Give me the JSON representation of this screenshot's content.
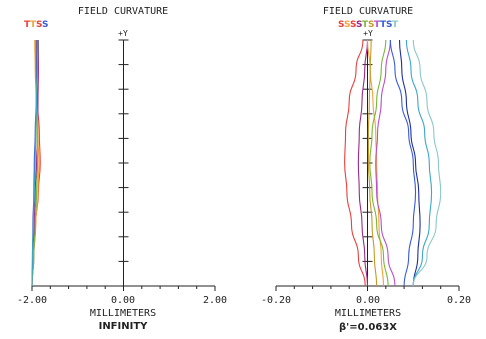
{
  "chart_data": [
    {
      "type": "line",
      "title": "FIELD CURVATURE",
      "xlabel": "MILLIMETERS",
      "sublabel": "INFINITY",
      "axis_marker": "+Y",
      "xlim": [
        -2.0,
        2.0
      ],
      "xticks": [
        "-2.00",
        "0.00",
        "2.00"
      ],
      "ylim": [
        0,
        1
      ],
      "grid": false,
      "legend": {
        "position": "top-left",
        "labels": [
          "T",
          "T",
          "S",
          "S"
        ]
      },
      "series": [
        {
          "color": "#e8413c",
          "x": [
            -2.0,
            -1.96,
            -1.92,
            -1.86,
            -1.82,
            -1.84,
            -1.88,
            -1.9,
            -1.91
          ],
          "y": [
            0,
            0.12,
            0.25,
            0.38,
            0.5,
            0.62,
            0.75,
            0.88,
            1.0
          ]
        },
        {
          "color": "#9a2a8a",
          "x": [
            -2.0,
            -1.98,
            -1.95,
            -1.93,
            -1.9,
            -1.88,
            -1.87,
            -1.86,
            -1.86
          ],
          "y": [
            0,
            0.12,
            0.25,
            0.38,
            0.5,
            0.62,
            0.75,
            0.88,
            1.0
          ]
        },
        {
          "color": "#f2a33a",
          "x": [
            -2.0,
            -1.97,
            -1.92,
            -1.87,
            -1.85,
            -1.87,
            -1.9,
            -1.93,
            -1.94
          ],
          "y": [
            0,
            0.12,
            0.25,
            0.38,
            0.5,
            0.62,
            0.75,
            0.88,
            1.0
          ]
        },
        {
          "color": "#3a5bd9",
          "x": [
            -2.0,
            -1.99,
            -1.98,
            -1.96,
            -1.95,
            -1.93,
            -1.91,
            -1.9,
            -1.89
          ],
          "y": [
            0,
            0.12,
            0.25,
            0.38,
            0.5,
            0.62,
            0.75,
            0.88,
            1.0
          ]
        },
        {
          "color": "#7ab63a",
          "x": [
            -2.0,
            -1.96,
            -1.93,
            -1.9,
            -1.88,
            -1.89,
            -1.91,
            -1.92,
            -1.92
          ],
          "y": [
            0,
            0.12,
            0.25,
            0.38,
            0.5,
            0.62,
            0.75,
            0.88,
            1.0
          ]
        },
        {
          "color": "#3aa7c9",
          "x": [
            -2.0,
            -1.99,
            -1.97,
            -1.95,
            -1.93,
            -1.92,
            -1.9,
            -1.88,
            -1.87
          ],
          "y": [
            0,
            0.12,
            0.25,
            0.38,
            0.5,
            0.62,
            0.75,
            0.88,
            1.0
          ]
        }
      ]
    },
    {
      "type": "line",
      "title": "FIELD CURVATURE",
      "xlabel": "MILLIMETERS",
      "sublabel": "β'=0.063X",
      "axis_marker": "+Y",
      "xlim": [
        -0.2,
        0.2
      ],
      "xticks": [
        "-0.20",
        "0.00",
        "0.20"
      ],
      "ylim": [
        0,
        1
      ],
      "grid": false,
      "legend": {
        "position": "top-center",
        "labels": [
          "S",
          "S",
          "S",
          "S",
          "T",
          "S",
          "T",
          "T",
          "S",
          "T"
        ]
      },
      "series": [
        {
          "color": "#e8413c",
          "x": [
            -0.005,
            -0.02,
            -0.035,
            -0.045,
            -0.05,
            -0.048,
            -0.04,
            -0.025,
            -0.01
          ],
          "y": [
            0,
            0.12,
            0.25,
            0.38,
            0.5,
            0.62,
            0.75,
            0.88,
            1.0
          ]
        },
        {
          "color": "#9a2a8a",
          "x": [
            0.0,
            -0.006,
            -0.012,
            -0.018,
            -0.02,
            -0.018,
            -0.012,
            -0.006,
            0.0
          ],
          "y": [
            0,
            0.12,
            0.25,
            0.38,
            0.5,
            0.62,
            0.75,
            0.88,
            1.0
          ]
        },
        {
          "color": "#f2a33a",
          "x": [
            0.035,
            0.03,
            0.025,
            0.022,
            0.02,
            0.018,
            0.012,
            0.006,
            0.0
          ],
          "y": [
            0,
            0.12,
            0.25,
            0.38,
            0.5,
            0.62,
            0.75,
            0.88,
            1.0
          ]
        },
        {
          "color": "#7ab63a",
          "x": [
            0.045,
            0.035,
            0.02,
            0.01,
            0.005,
            0.01,
            0.02,
            0.03,
            0.04
          ],
          "y": [
            0,
            0.12,
            0.25,
            0.38,
            0.5,
            0.62,
            0.75,
            0.88,
            1.0
          ]
        },
        {
          "color": "#b84fc9",
          "x": [
            0.06,
            0.045,
            0.03,
            0.02,
            0.018,
            0.022,
            0.03,
            0.04,
            0.05
          ],
          "y": [
            0,
            0.12,
            0.25,
            0.38,
            0.5,
            0.62,
            0.75,
            0.88,
            1.0
          ]
        },
        {
          "color": "#3a5bd9",
          "x": [
            0.08,
            0.09,
            0.1,
            0.105,
            0.1,
            0.09,
            0.075,
            0.06,
            0.05
          ],
          "y": [
            0,
            0.12,
            0.25,
            0.38,
            0.5,
            0.62,
            0.75,
            0.88,
            1.0
          ]
        },
        {
          "color": "#1f2f9a",
          "x": [
            0.1,
            0.11,
            0.115,
            0.112,
            0.105,
            0.095,
            0.085,
            0.075,
            0.07
          ],
          "y": [
            0,
            0.12,
            0.25,
            0.38,
            0.5,
            0.62,
            0.75,
            0.88,
            1.0
          ]
        },
        {
          "color": "#3aa7c9",
          "x": [
            0.1,
            0.12,
            0.135,
            0.14,
            0.135,
            0.125,
            0.11,
            0.095,
            0.085
          ],
          "y": [
            0,
            0.12,
            0.25,
            0.38,
            0.5,
            0.62,
            0.75,
            0.88,
            1.0
          ]
        },
        {
          "color": "#8ac8c9",
          "x": [
            0.1,
            0.13,
            0.15,
            0.16,
            0.155,
            0.145,
            0.13,
            0.115,
            0.1
          ],
          "y": [
            0,
            0.12,
            0.25,
            0.38,
            0.5,
            0.62,
            0.75,
            0.88,
            1.0
          ]
        },
        {
          "color": "#c79a2a",
          "x": [
            0.02,
            0.015,
            0.01,
            0.005,
            0.002,
            0.002,
            0.004,
            0.006,
            0.008
          ],
          "y": [
            0,
            0.12,
            0.25,
            0.38,
            0.5,
            0.62,
            0.75,
            0.88,
            1.0
          ]
        }
      ]
    }
  ],
  "legend_colors": {
    "left": [
      "#e8413c",
      "#f2a33a",
      "#e8413c",
      "#3a5bd9"
    ],
    "right": [
      "#e8413c",
      "#f2a33a",
      "#e8413c",
      "#9a2a8a",
      "#7ab63a",
      "#c79a2a",
      "#b84fc9",
      "#3a5bd9",
      "#3a5bd9",
      "#8ac8c9"
    ]
  }
}
